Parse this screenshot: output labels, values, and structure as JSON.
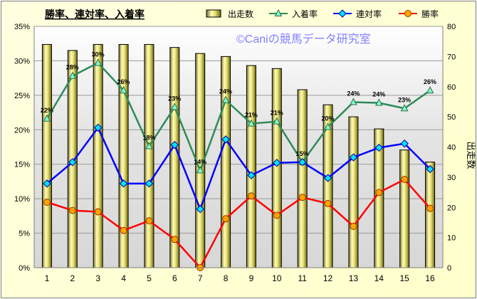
{
  "chart_data": {
    "type": "bar+line",
    "title": "勝率、連対率、入着率",
    "watermark": "©Caniの競馬データ研究室",
    "categories": [
      "1",
      "2",
      "3",
      "4",
      "5",
      "6",
      "7",
      "8",
      "9",
      "10",
      "11",
      "12",
      "13",
      "14",
      "15",
      "16"
    ],
    "left_axis": {
      "min": 0,
      "max": 35,
      "step": 5,
      "unit": "%",
      "ticks": [
        "0%",
        "5%",
        "10%",
        "15%",
        "20%",
        "25%",
        "30%",
        "35%"
      ]
    },
    "right_axis": {
      "min": 0,
      "max": 80,
      "step": 10,
      "label": "出走数",
      "ticks": [
        "0",
        "10",
        "20",
        "30",
        "40",
        "50",
        "60",
        "70",
        "80"
      ]
    },
    "grid": true,
    "legend_position": "top-right",
    "series": [
      {
        "name": "出走数",
        "kind": "bar",
        "axis": "right",
        "color": "#e8e26e",
        "values": [
          74,
          72,
          74,
          74,
          74,
          73,
          71,
          70,
          67,
          66,
          59,
          54,
          50,
          46,
          39,
          35
        ]
      },
      {
        "name": "入着率",
        "kind": "line",
        "axis": "left",
        "color": "#2e8b57",
        "marker": "triangle",
        "values": [
          21.6,
          27.8,
          29.7,
          25.7,
          17.6,
          23.3,
          14.1,
          24.3,
          20.9,
          21.2,
          15.3,
          20.4,
          24.0,
          23.9,
          23.1,
          25.7
        ],
        "data_labels": [
          "22%",
          "28%",
          "30%",
          "26%",
          "18%",
          "23%",
          "14%",
          "24%",
          "21%",
          "21%",
          "15%",
          "20%",
          "24%",
          "24%",
          "23%",
          "26%"
        ]
      },
      {
        "name": "連対率",
        "kind": "line",
        "axis": "left",
        "color": "#0000ff",
        "marker": "diamond",
        "values": [
          12.2,
          15.3,
          20.3,
          12.2,
          12.2,
          17.8,
          8.5,
          18.6,
          13.4,
          15.2,
          15.3,
          13.0,
          16.0,
          17.4,
          18.0,
          14.3
        ]
      },
      {
        "name": "勝率",
        "kind": "line",
        "axis": "left",
        "color": "#ff0000",
        "marker": "circle",
        "values": [
          9.5,
          8.3,
          8.1,
          5.4,
          6.8,
          4.1,
          0.0,
          7.1,
          10.4,
          7.6,
          10.2,
          9.3,
          6.0,
          10.9,
          12.8,
          8.6
        ]
      }
    ]
  }
}
